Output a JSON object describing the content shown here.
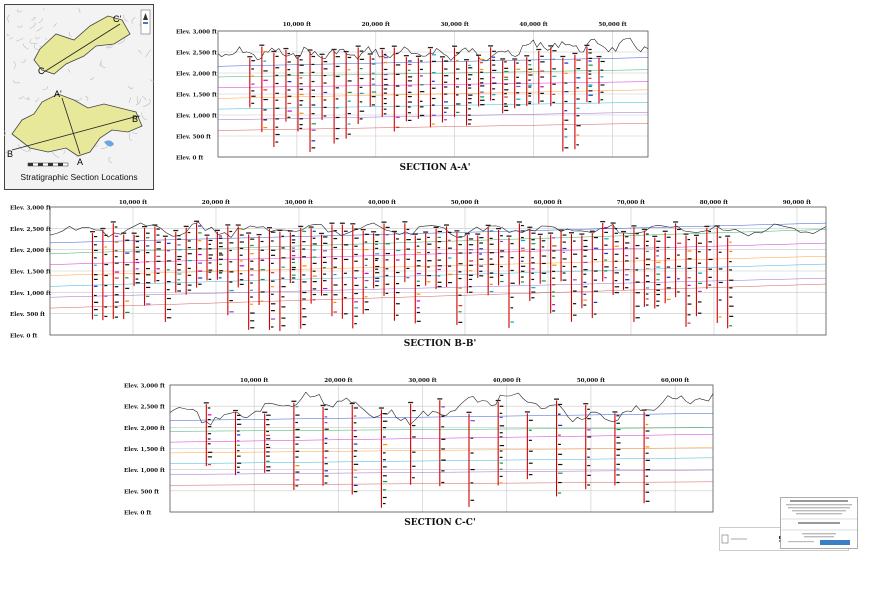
{
  "inset_map": {
    "caption": "Stratigraphic Section Locations",
    "labels": [
      "C'",
      "C",
      "A'",
      "B'",
      "B",
      "A"
    ]
  },
  "sections": [
    {
      "id": "A-A'",
      "title": "SECTION A-A'",
      "distance_labels": [
        "10,000 ft",
        "20,000 ft",
        "30,000 ft",
        "40,000 ft",
        "50,000 ft"
      ],
      "elevation_labels": [
        "Elev. 3,000 ft",
        "Elev. 2,500 ft",
        "Elev. 2,000 ft",
        "Elev. 1,500 ft",
        "Elev. 1,000 ft",
        "Elev. 500 ft",
        "Elev. 0 ft"
      ]
    },
    {
      "id": "B-B'",
      "title": "SECTION B-B'",
      "distance_labels": [
        "10,000 ft",
        "20,000 ft",
        "30,000 ft",
        "40,000 ft",
        "50,000 ft",
        "60,000 ft",
        "70,000 ft",
        "80,000 ft",
        "90,000 ft"
      ],
      "elevation_labels": [
        "Elev. 3,000 ft",
        "Elev. 2,500 ft",
        "Elev. 2,000 ft",
        "Elev. 1,500 ft",
        "Elev. 1,000 ft",
        "Elev. 500 ft",
        "Elev. 0 ft"
      ]
    },
    {
      "id": "C-C'",
      "title": "SECTION C-C'",
      "distance_labels": [
        "10,000 ft",
        "20,000 ft",
        "30,000 ft",
        "40,000 ft",
        "50,000 ft",
        "60,000 ft"
      ],
      "elevation_labels": [
        "Elev. 3,000 ft",
        "Elev. 2,500 ft",
        "Elev. 2,000 ft",
        "Elev. 1,500 ft",
        "Elev. 1,000 ft",
        "Elev. 500 ft",
        "Elev. 0 ft"
      ]
    }
  ],
  "colors": {
    "well_red": "#d40000",
    "frame": "#555555",
    "grid": "#c8c8c8",
    "surface": "#222222",
    "map_fill": "#e8e89a",
    "map_relief": "#bdbdbd",
    "horizon_colors": [
      "#0033cc",
      "#00a040",
      "#cc00cc",
      "#ff8800",
      "#00aacc",
      "#8844cc",
      "#cc3333"
    ]
  }
}
